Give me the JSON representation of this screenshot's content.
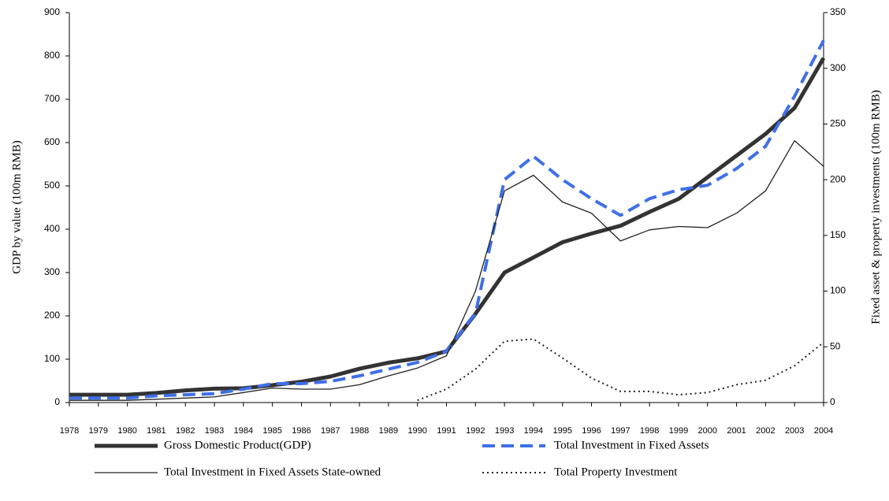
{
  "chart_data": {
    "type": "line",
    "y_label": "GDP by value (100m RMB)",
    "y2_label": "Fixed asset & property investments (100m RMB)",
    "x": [
      1978,
      1979,
      1980,
      1981,
      1982,
      1983,
      1984,
      1985,
      1986,
      1987,
      1988,
      1989,
      1990,
      1991,
      1992,
      1993,
      1994,
      1995,
      1996,
      1997,
      1998,
      1999,
      2000,
      2001,
      2002,
      2003,
      2004
    ],
    "xlim": [
      1978,
      2004
    ],
    "xticks": [
      1978,
      1979,
      1980,
      1981,
      1982,
      1983,
      1984,
      1985,
      1986,
      1987,
      1988,
      1989,
      1990,
      1991,
      1992,
      1993,
      1994,
      1995,
      1996,
      1997,
      1998,
      1999,
      2000,
      2001,
      2002,
      2003,
      2004
    ],
    "ylim": [
      0,
      900
    ],
    "yticks": [
      0,
      100,
      200,
      300,
      400,
      500,
      600,
      700,
      800,
      900
    ],
    "y2lim": [
      0,
      350
    ],
    "y2ticks": [
      0,
      50,
      100,
      150,
      200,
      250,
      300,
      350
    ],
    "series": [
      {
        "name": "Gross Domestic Product(GDP)",
        "color": "#333333",
        "style": "thick",
        "values": [
          18,
          18,
          18,
          22,
          28,
          32,
          33,
          40,
          48,
          60,
          78,
          92,
          102,
          118,
          205,
          300,
          335,
          370,
          390,
          408,
          440,
          470,
          520,
          570,
          620,
          680,
          795
        ]
      },
      {
        "name": "Total Investment in Fixed Assets",
        "color": "#3f6fe8",
        "style": "dashed",
        "axis": "y2",
        "values": [
          4,
          4,
          4,
          6,
          7,
          8,
          12,
          17,
          17,
          19,
          24,
          30,
          36,
          46,
          80,
          200,
          221,
          200,
          183,
          168,
          183,
          191,
          195,
          210,
          230,
          275,
          325
        ]
      },
      {
        "name": "Total Investment in Fixed Assets State-owned",
        "color": "#222222",
        "style": "thin",
        "axis": "y2",
        "values": [
          2,
          2,
          2,
          3,
          4,
          5,
          9,
          13,
          12,
          12,
          16,
          24,
          31,
          42,
          100,
          190,
          204,
          180,
          170,
          145,
          155,
          158,
          157,
          170,
          190,
          235,
          212
        ]
      },
      {
        "name": "Total Property Investment",
        "color": "#222222",
        "style": "dotted",
        "axis": "y2",
        "values": [
          null,
          null,
          null,
          null,
          null,
          null,
          null,
          null,
          null,
          null,
          null,
          null,
          2,
          12,
          30,
          55,
          57,
          40,
          22,
          10,
          10,
          7,
          9,
          16,
          20,
          33,
          54
        ]
      }
    ]
  }
}
